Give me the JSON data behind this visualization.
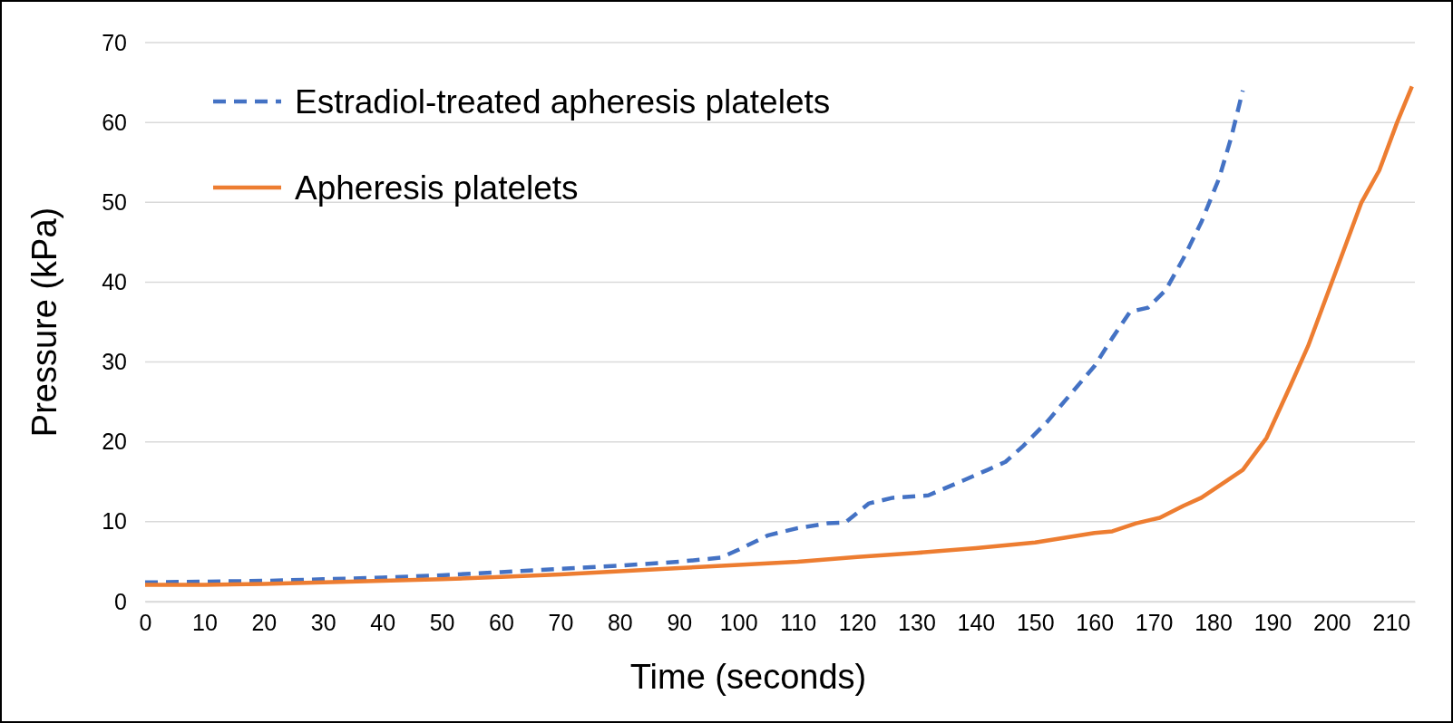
{
  "chart_data": {
    "type": "line",
    "xlabel": "Time (seconds)",
    "ylabel": "Pressure (kPa)",
    "xlim": [
      0,
      214
    ],
    "xticks": [
      0,
      10,
      20,
      30,
      40,
      50,
      60,
      70,
      80,
      90,
      100,
      110,
      120,
      130,
      140,
      150,
      160,
      170,
      180,
      190,
      200,
      210
    ],
    "ylim": [
      0,
      70
    ],
    "yticks": [
      0,
      10,
      20,
      30,
      40,
      50,
      60,
      70
    ],
    "grid": "y",
    "legend": "top left",
    "series": [
      {
        "name": "Estradiol-treated apheresis platelets",
        "color": "#4472c4",
        "line_style": "dashed",
        "x": [
          0,
          10,
          20,
          30,
          40,
          50,
          60,
          70,
          80,
          90,
          97,
          100,
          105,
          110,
          115,
          118,
          122,
          126,
          132,
          138,
          142,
          145,
          148,
          152,
          156,
          160,
          163,
          166,
          169,
          172,
          175,
          178,
          181,
          183,
          185
        ],
        "values": [
          2.4,
          2.5,
          2.6,
          2.8,
          3.0,
          3.3,
          3.7,
          4.1,
          4.5,
          5.0,
          5.5,
          6.5,
          8.3,
          9.2,
          9.8,
          9.9,
          12.3,
          13.0,
          13.3,
          15.2,
          16.5,
          17.5,
          19.5,
          22.5,
          26,
          29.5,
          33,
          36.3,
          36.8,
          39,
          43,
          47.5,
          53,
          58,
          64
        ]
      },
      {
        "name": "Apheresis platelets",
        "color": "#ed7d31",
        "line_style": "solid",
        "x": [
          0,
          10,
          20,
          30,
          40,
          50,
          60,
          70,
          80,
          90,
          100,
          110,
          120,
          130,
          140,
          150,
          155,
          160,
          163,
          167,
          171,
          175,
          178,
          182,
          185,
          189,
          193,
          196,
          198,
          200,
          202,
          205,
          208,
          211,
          213.5
        ],
        "values": [
          2.1,
          2.1,
          2.2,
          2.4,
          2.6,
          2.8,
          3.1,
          3.4,
          3.8,
          4.2,
          4.6,
          5.0,
          5.6,
          6.1,
          6.7,
          7.4,
          8.0,
          8.6,
          8.8,
          9.8,
          10.5,
          12,
          13,
          15,
          16.5,
          20.5,
          27,
          32,
          36,
          40,
          44,
          50,
          54,
          60,
          64.5
        ]
      }
    ]
  }
}
